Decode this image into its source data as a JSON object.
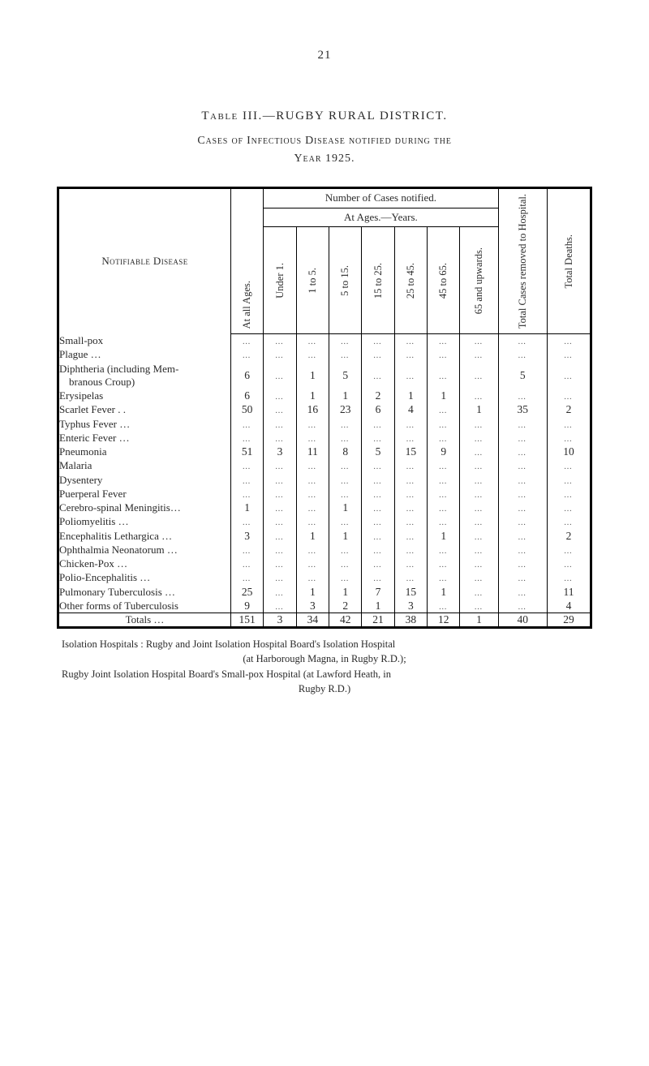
{
  "page_number": "21",
  "table_heading": "Table III.—RUGBY RURAL DISTRICT.",
  "sub_heading": "Cases of Infectious Disease notified during the",
  "year_line": "Year 1925.",
  "big_header_left": "Notifiable Disease",
  "big_header_mid": "Number of Cases notified.",
  "at_ages": "At Ages.—Years.",
  "col_labels": {
    "at_all_ages": "At all Ages.",
    "under1": "Under 1.",
    "c1to5": "1 to 5.",
    "c5to15": "5 to 15.",
    "c15to25": "15 to 25.",
    "c25to45": "25 to 45.",
    "c45to65": "45 to 65.",
    "c65up": "65 and upwards.",
    "removed": "Total Cases removed to Hospital.",
    "deaths": "Total Deaths."
  },
  "rows": [
    {
      "label": "Small-pox",
      "v": [
        "",
        "",
        "",
        "",
        "",
        "",
        "",
        "",
        "",
        ""
      ]
    },
    {
      "label": "Plague …",
      "v": [
        "",
        "",
        "",
        "",
        "",
        "",
        "",
        "",
        "",
        ""
      ]
    },
    {
      "label": "Diphtheria (including Mem-\n  branous Croup)",
      "v": [
        "6",
        "",
        "1",
        "5",
        "",
        "",
        "",
        "",
        "5",
        ""
      ]
    },
    {
      "label": "Erysipelas",
      "v": [
        "6",
        "",
        "1",
        "1",
        "2",
        "1",
        "1",
        "",
        "",
        ""
      ]
    },
    {
      "label": "Scarlet Fever . .",
      "v": [
        "50",
        "",
        "16",
        "23",
        "6",
        "4",
        "",
        "1",
        "35",
        "2"
      ]
    },
    {
      "label": "Typhus Fever …",
      "v": [
        "",
        "",
        "",
        "",
        "",
        "",
        "",
        "",
        "",
        ""
      ]
    },
    {
      "label": "Enteric Fever …",
      "v": [
        "",
        "",
        "",
        "",
        "",
        "",
        "",
        "",
        "",
        ""
      ]
    },
    {
      "label": "Pneumonia",
      "v": [
        "51",
        "3",
        "11",
        "8",
        "5",
        "15",
        "9",
        "",
        "",
        "10"
      ]
    },
    {
      "label": "Malaria",
      "v": [
        "",
        "",
        "",
        "",
        "",
        "",
        "",
        "",
        "",
        ""
      ]
    },
    {
      "label": "Dysentery",
      "v": [
        "",
        "",
        "",
        "",
        "",
        "",
        "",
        "",
        "",
        ""
      ]
    },
    {
      "label": "Puerperal Fever",
      "v": [
        "",
        "",
        "",
        "",
        "",
        "",
        "",
        "",
        "",
        ""
      ]
    },
    {
      "label": "Cerebro-spinal Meningitis…",
      "v": [
        "1",
        "",
        "",
        "1",
        "",
        "",
        "",
        "",
        "",
        ""
      ]
    },
    {
      "label": "Poliomyelitis …",
      "v": [
        "",
        "",
        "",
        "",
        "",
        "",
        "",
        "",
        "",
        ""
      ]
    },
    {
      "label": "Encephalitis Lethargica  …",
      "v": [
        "3",
        "",
        "1",
        "1",
        "",
        "",
        "1",
        "",
        "",
        "2"
      ]
    },
    {
      "label": "Ophthalmia Neonatorum  …",
      "v": [
        "",
        "",
        "",
        "",
        "",
        "",
        "",
        "",
        "",
        ""
      ]
    },
    {
      "label": "Chicken-Pox …",
      "v": [
        "",
        "",
        "",
        "",
        "",
        "",
        "",
        "",
        "",
        ""
      ]
    },
    {
      "label": "Polio-Encephalitis  …",
      "v": [
        "",
        "",
        "",
        "",
        "",
        "",
        "",
        "",
        "",
        ""
      ]
    },
    {
      "label": "Pulmonary Tuberculosis  …",
      "v": [
        "25",
        "",
        "1",
        "1",
        "7",
        "15",
        "1",
        "",
        "",
        "11"
      ]
    },
    {
      "label": "Other forms of Tuberculosis",
      "v": [
        "9",
        "",
        "3",
        "2",
        "1",
        "3",
        "",
        "",
        "",
        "4"
      ]
    }
  ],
  "totals": {
    "label": "Totals  …",
    "v": [
      "151",
      "3",
      "34",
      "42",
      "21",
      "38",
      "12",
      "1",
      "40",
      "29"
    ]
  },
  "footnote_line1": "Isolation Hospitals : Rugby and Joint Isolation Hospital Board's Isolation Hospital",
  "footnote_line2": "(at Harborough Magna, in Rugby R.D.);",
  "footnote_line3": "Rugby Joint Isolation Hospital Board's Small-pox Hospital (at Lawford Heath, in",
  "footnote_line4": "Rugby R.D.)"
}
